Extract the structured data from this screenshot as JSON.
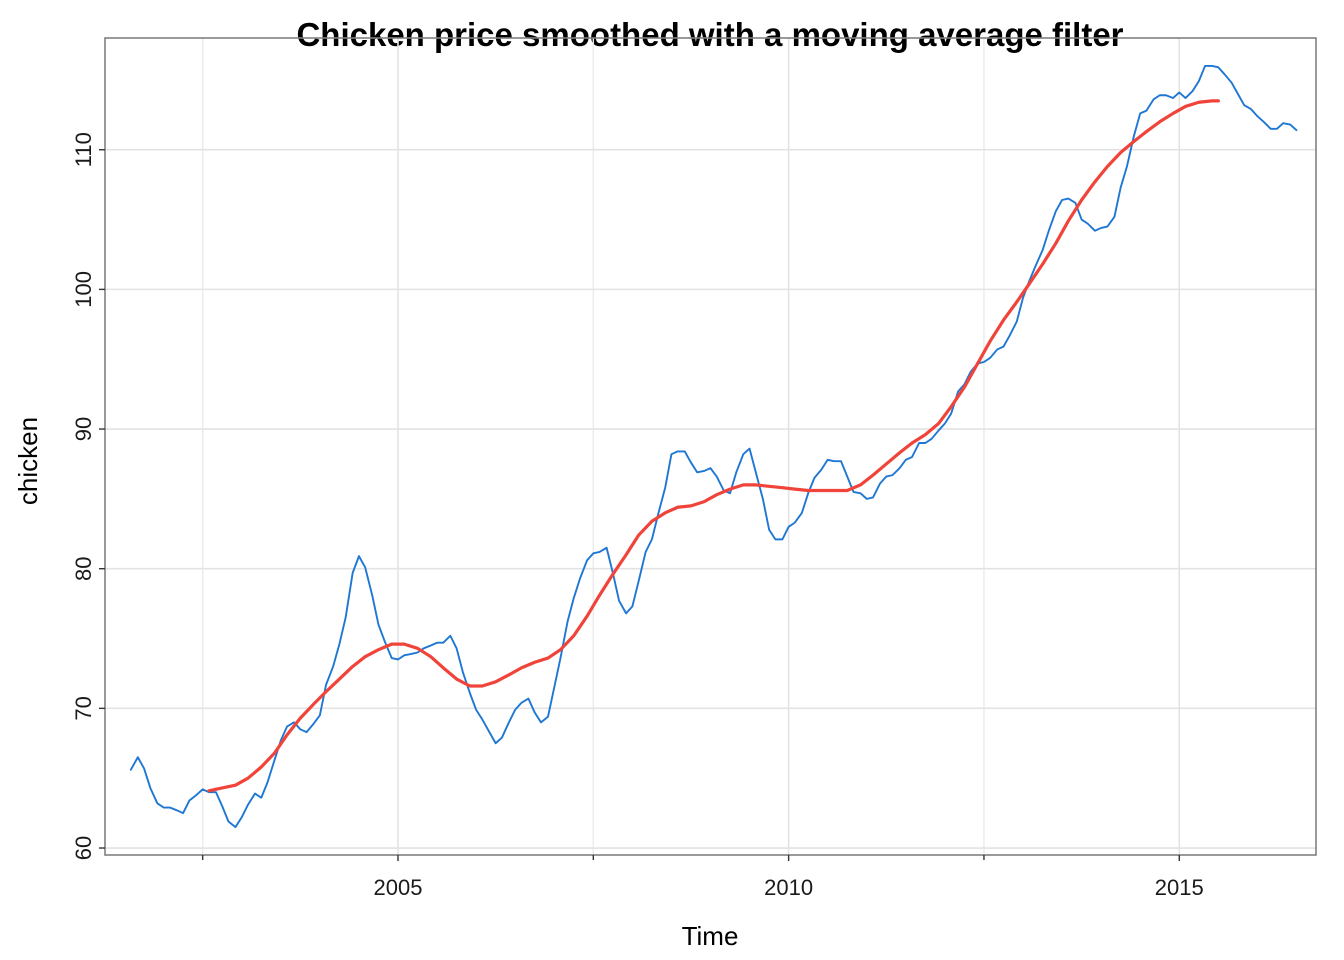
{
  "chart_data": {
    "type": "line",
    "title": "Chicken price smoothed with a moving average filter",
    "xlabel": "Time",
    "ylabel": "chicken",
    "xlim": [
      2001.25,
      2016.75
    ],
    "ylim": [
      59.5,
      118.0
    ],
    "x_ticks": [
      2005,
      2010,
      2015
    ],
    "x_tick_labels": [
      "2005",
      "2010",
      "2015"
    ],
    "x_minor_ticks": [
      2002.5,
      2007.5,
      2012.5
    ],
    "y_ticks": [
      60,
      70,
      80,
      90,
      100,
      110
    ],
    "y_tick_labels": [
      "60",
      "70",
      "80",
      "90",
      "100",
      "110"
    ],
    "grid": true,
    "legend": "none",
    "series": [
      {
        "color": "#1f77d4",
        "points": [
          [
            2001.58,
            65.6
          ],
          [
            2001.67,
            66.5
          ],
          [
            2001.75,
            65.7
          ],
          [
            2001.83,
            64.3
          ],
          [
            2001.92,
            63.2
          ],
          [
            2002.0,
            62.9
          ],
          [
            2002.08,
            62.9
          ],
          [
            2002.17,
            62.7
          ],
          [
            2002.25,
            62.5
          ],
          [
            2002.33,
            63.4
          ],
          [
            2002.42,
            63.8
          ],
          [
            2002.5,
            64.2
          ],
          [
            2002.58,
            64.0
          ],
          [
            2002.67,
            64.0
          ],
          [
            2002.75,
            63.0
          ],
          [
            2002.83,
            61.9
          ],
          [
            2002.92,
            61.5
          ],
          [
            2003.0,
            62.2
          ],
          [
            2003.08,
            63.1
          ],
          [
            2003.17,
            63.9
          ],
          [
            2003.25,
            63.6
          ],
          [
            2003.33,
            64.7
          ],
          [
            2003.42,
            66.3
          ],
          [
            2003.5,
            67.7
          ],
          [
            2003.58,
            68.7
          ],
          [
            2003.67,
            69.0
          ],
          [
            2003.75,
            68.5
          ],
          [
            2003.83,
            68.3
          ],
          [
            2003.92,
            68.9
          ],
          [
            2004.0,
            69.5
          ],
          [
            2004.08,
            71.7
          ],
          [
            2004.17,
            73.0
          ],
          [
            2004.25,
            74.6
          ],
          [
            2004.33,
            76.5
          ],
          [
            2004.42,
            79.7
          ],
          [
            2004.5,
            80.9
          ],
          [
            2004.58,
            80.1
          ],
          [
            2004.67,
            78.1
          ],
          [
            2004.75,
            76.0
          ],
          [
            2004.83,
            74.8
          ],
          [
            2004.92,
            73.6
          ],
          [
            2005.0,
            73.5
          ],
          [
            2005.08,
            73.8
          ],
          [
            2005.17,
            73.9
          ],
          [
            2005.25,
            74.0
          ],
          [
            2005.33,
            74.3
          ],
          [
            2005.42,
            74.5
          ],
          [
            2005.5,
            74.7
          ],
          [
            2005.58,
            74.7
          ],
          [
            2005.67,
            75.2
          ],
          [
            2005.75,
            74.3
          ],
          [
            2005.83,
            72.6
          ],
          [
            2005.92,
            71.1
          ],
          [
            2006.0,
            69.9
          ],
          [
            2006.08,
            69.2
          ],
          [
            2006.17,
            68.3
          ],
          [
            2006.25,
            67.5
          ],
          [
            2006.33,
            67.9
          ],
          [
            2006.42,
            69.0
          ],
          [
            2006.5,
            69.9
          ],
          [
            2006.58,
            70.4
          ],
          [
            2006.67,
            70.7
          ],
          [
            2006.75,
            69.7
          ],
          [
            2006.83,
            69.0
          ],
          [
            2006.92,
            69.4
          ],
          [
            2007.0,
            71.5
          ],
          [
            2007.08,
            73.6
          ],
          [
            2007.17,
            76.2
          ],
          [
            2007.25,
            77.9
          ],
          [
            2007.33,
            79.3
          ],
          [
            2007.42,
            80.6
          ],
          [
            2007.5,
            81.1
          ],
          [
            2007.58,
            81.2
          ],
          [
            2007.67,
            81.5
          ],
          [
            2007.75,
            79.7
          ],
          [
            2007.83,
            77.7
          ],
          [
            2007.92,
            76.8
          ],
          [
            2008.0,
            77.3
          ],
          [
            2008.08,
            79.1
          ],
          [
            2008.17,
            81.2
          ],
          [
            2008.25,
            82.1
          ],
          [
            2008.33,
            83.9
          ],
          [
            2008.42,
            85.8
          ],
          [
            2008.5,
            88.2
          ],
          [
            2008.58,
            88.4
          ],
          [
            2008.67,
            88.4
          ],
          [
            2008.75,
            87.6
          ],
          [
            2008.83,
            86.9
          ],
          [
            2008.92,
            87.0
          ],
          [
            2009.0,
            87.2
          ],
          [
            2009.08,
            86.6
          ],
          [
            2009.17,
            85.6
          ],
          [
            2009.25,
            85.4
          ],
          [
            2009.33,
            86.9
          ],
          [
            2009.42,
            88.2
          ],
          [
            2009.5,
            88.6
          ],
          [
            2009.58,
            86.9
          ],
          [
            2009.67,
            85.0
          ],
          [
            2009.75,
            82.8
          ],
          [
            2009.83,
            82.1
          ],
          [
            2009.92,
            82.1
          ],
          [
            2010.0,
            83.0
          ],
          [
            2010.08,
            83.3
          ],
          [
            2010.17,
            84.0
          ],
          [
            2010.25,
            85.4
          ],
          [
            2010.33,
            86.5
          ],
          [
            2010.42,
            87.1
          ],
          [
            2010.5,
            87.8
          ],
          [
            2010.58,
            87.7
          ],
          [
            2010.67,
            87.7
          ],
          [
            2010.75,
            86.6
          ],
          [
            2010.83,
            85.5
          ],
          [
            2010.92,
            85.4
          ],
          [
            2011.0,
            85.0
          ],
          [
            2011.08,
            85.1
          ],
          [
            2011.17,
            86.1
          ],
          [
            2011.25,
            86.6
          ],
          [
            2011.33,
            86.7
          ],
          [
            2011.42,
            87.2
          ],
          [
            2011.5,
            87.8
          ],
          [
            2011.58,
            88.0
          ],
          [
            2011.67,
            89.0
          ],
          [
            2011.75,
            89.0
          ],
          [
            2011.83,
            89.3
          ],
          [
            2011.92,
            89.9
          ],
          [
            2012.0,
            90.4
          ],
          [
            2012.08,
            91.1
          ],
          [
            2012.17,
            92.7
          ],
          [
            2012.25,
            93.2
          ],
          [
            2012.33,
            94.1
          ],
          [
            2012.42,
            94.7
          ],
          [
            2012.5,
            94.8
          ],
          [
            2012.58,
            95.1
          ],
          [
            2012.67,
            95.7
          ],
          [
            2012.75,
            95.9
          ],
          [
            2012.83,
            96.7
          ],
          [
            2012.92,
            97.7
          ],
          [
            2013.0,
            99.4
          ],
          [
            2013.08,
            100.6
          ],
          [
            2013.17,
            101.8
          ],
          [
            2013.25,
            102.8
          ],
          [
            2013.33,
            104.2
          ],
          [
            2013.42,
            105.6
          ],
          [
            2013.5,
            106.4
          ],
          [
            2013.58,
            106.5
          ],
          [
            2013.67,
            106.2
          ],
          [
            2013.75,
            105.0
          ],
          [
            2013.83,
            104.7
          ],
          [
            2013.92,
            104.2
          ],
          [
            2014.0,
            104.4
          ],
          [
            2014.08,
            104.5
          ],
          [
            2014.17,
            105.2
          ],
          [
            2014.25,
            107.3
          ],
          [
            2014.33,
            108.8
          ],
          [
            2014.42,
            111.0
          ],
          [
            2014.5,
            112.6
          ],
          [
            2014.58,
            112.8
          ],
          [
            2014.67,
            113.6
          ],
          [
            2014.75,
            113.9
          ],
          [
            2014.83,
            113.9
          ],
          [
            2014.92,
            113.7
          ],
          [
            2015.0,
            114.1
          ],
          [
            2015.08,
            113.7
          ],
          [
            2015.17,
            114.2
          ],
          [
            2015.25,
            114.9
          ],
          [
            2015.33,
            116.0
          ],
          [
            2015.42,
            116.0
          ],
          [
            2015.5,
            115.9
          ],
          [
            2015.58,
            115.4
          ],
          [
            2015.67,
            114.8
          ],
          [
            2015.75,
            114.0
          ],
          [
            2015.83,
            113.2
          ],
          [
            2015.92,
            112.9
          ],
          [
            2016.0,
            112.4
          ],
          [
            2016.08,
            112.0
          ],
          [
            2016.17,
            111.5
          ],
          [
            2016.25,
            111.5
          ],
          [
            2016.33,
            111.9
          ],
          [
            2016.42,
            111.8
          ],
          [
            2016.5,
            111.4
          ]
        ]
      },
      {
        "color": "#f0443a",
        "points": [
          [
            2002.58,
            64.1
          ],
          [
            2002.75,
            64.3
          ],
          [
            2002.92,
            64.5
          ],
          [
            2003.08,
            65.0
          ],
          [
            2003.25,
            65.8
          ],
          [
            2003.42,
            66.8
          ],
          [
            2003.58,
            68.1
          ],
          [
            2003.75,
            69.3
          ],
          [
            2003.92,
            70.3
          ],
          [
            2004.08,
            71.2
          ],
          [
            2004.25,
            72.1
          ],
          [
            2004.42,
            73.0
          ],
          [
            2004.58,
            73.7
          ],
          [
            2004.75,
            74.2
          ],
          [
            2004.92,
            74.6
          ],
          [
            2005.08,
            74.6
          ],
          [
            2005.25,
            74.3
          ],
          [
            2005.42,
            73.7
          ],
          [
            2005.58,
            72.9
          ],
          [
            2005.75,
            72.1
          ],
          [
            2005.92,
            71.6
          ],
          [
            2006.08,
            71.6
          ],
          [
            2006.25,
            71.9
          ],
          [
            2006.42,
            72.4
          ],
          [
            2006.58,
            72.9
          ],
          [
            2006.75,
            73.3
          ],
          [
            2006.92,
            73.6
          ],
          [
            2007.08,
            74.2
          ],
          [
            2007.25,
            75.2
          ],
          [
            2007.42,
            76.6
          ],
          [
            2007.58,
            78.1
          ],
          [
            2007.75,
            79.6
          ],
          [
            2007.92,
            81.0
          ],
          [
            2008.08,
            82.4
          ],
          [
            2008.25,
            83.4
          ],
          [
            2008.42,
            84.0
          ],
          [
            2008.58,
            84.4
          ],
          [
            2008.75,
            84.5
          ],
          [
            2008.92,
            84.8
          ],
          [
            2009.08,
            85.3
          ],
          [
            2009.25,
            85.7
          ],
          [
            2009.42,
            86.0
          ],
          [
            2009.58,
            86.0
          ],
          [
            2009.75,
            85.9
          ],
          [
            2009.92,
            85.8
          ],
          [
            2010.08,
            85.7
          ],
          [
            2010.25,
            85.6
          ],
          [
            2010.42,
            85.6
          ],
          [
            2010.58,
            85.6
          ],
          [
            2010.75,
            85.6
          ],
          [
            2010.92,
            86.0
          ],
          [
            2011.08,
            86.7
          ],
          [
            2011.25,
            87.5
          ],
          [
            2011.42,
            88.3
          ],
          [
            2011.58,
            89.0
          ],
          [
            2011.75,
            89.6
          ],
          [
            2011.92,
            90.4
          ],
          [
            2012.08,
            91.6
          ],
          [
            2012.25,
            93.0
          ],
          [
            2012.42,
            94.7
          ],
          [
            2012.58,
            96.3
          ],
          [
            2012.75,
            97.8
          ],
          [
            2012.92,
            99.1
          ],
          [
            2013.08,
            100.4
          ],
          [
            2013.25,
            101.8
          ],
          [
            2013.42,
            103.3
          ],
          [
            2013.58,
            104.9
          ],
          [
            2013.75,
            106.4
          ],
          [
            2013.92,
            107.7
          ],
          [
            2014.08,
            108.8
          ],
          [
            2014.25,
            109.8
          ],
          [
            2014.42,
            110.6
          ],
          [
            2014.58,
            111.3
          ],
          [
            2014.75,
            112.0
          ],
          [
            2014.92,
            112.6
          ],
          [
            2015.08,
            113.1
          ],
          [
            2015.25,
            113.4
          ],
          [
            2015.42,
            113.5
          ],
          [
            2015.5,
            113.5
          ]
        ]
      }
    ]
  }
}
